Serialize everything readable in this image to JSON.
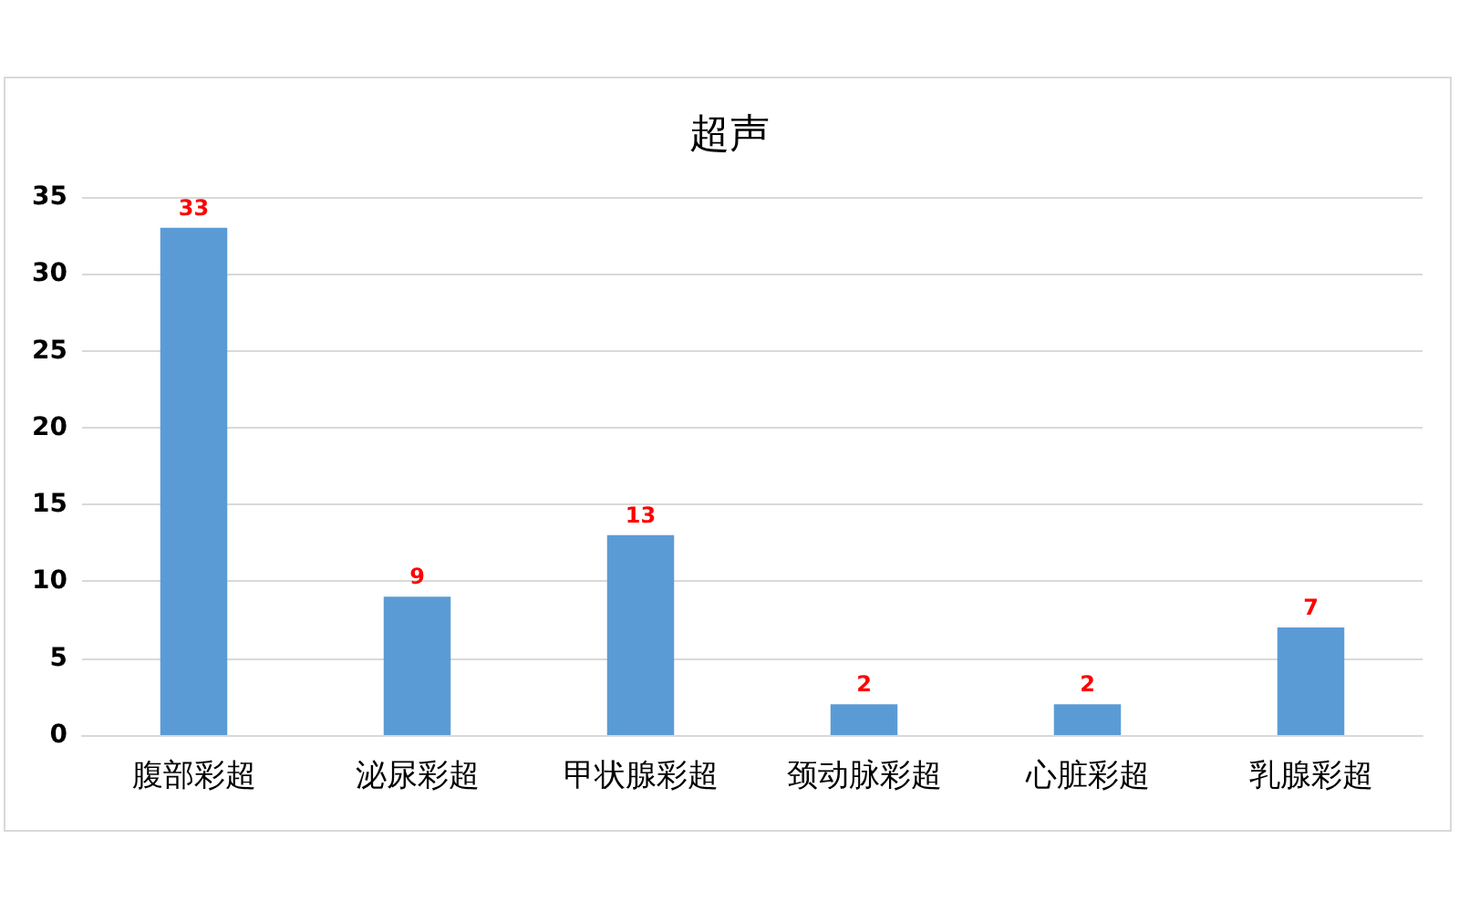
{
  "chart_data": {
    "type": "bar",
    "title": "超声",
    "categories": [
      "腹部彩超",
      "泌尿彩超",
      "甲状腺彩超",
      "颈动脉彩超",
      "心脏彩超",
      "乳腺彩超"
    ],
    "values": [
      33,
      9,
      13,
      2,
      2,
      7
    ],
    "color": "#5b9bd5",
    "ylim": [
      0,
      35
    ],
    "yticks": [
      0,
      5,
      10,
      15,
      20,
      25,
      30,
      35
    ],
    "grid": "y",
    "data_labels": true
  }
}
